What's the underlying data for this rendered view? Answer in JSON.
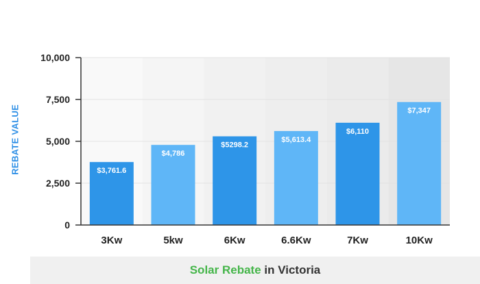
{
  "chart_data": {
    "type": "bar",
    "title": "",
    "caption_accent": "Solar Rebate",
    "caption_rest": " in Victoria",
    "ylabel": "REBATE VALUE",
    "xlabel": "",
    "categories": [
      "3Kw",
      "5kw",
      "6Kw",
      "6.6Kw",
      "7Kw",
      "10Kw"
    ],
    "values": [
      3761.6,
      4786,
      5298.2,
      5613.4,
      6110,
      7347
    ],
    "data_labels": [
      "$3,761.6",
      "$4,786",
      "$5298.2",
      "$5,613.4",
      "$6,110",
      "$7,347"
    ],
    "ylim": [
      0,
      10000
    ],
    "yticks": [
      0,
      2500,
      5000,
      7500,
      10000
    ],
    "ytick_labels": [
      "0",
      "2,500",
      "5,000",
      "7,500",
      "10,000"
    ],
    "grid": true,
    "colors": {
      "bar_dark": "#2e95e8",
      "bar_light": "#5fb6f7",
      "data_label": "#ffffff",
      "accent": "#44b549"
    }
  }
}
